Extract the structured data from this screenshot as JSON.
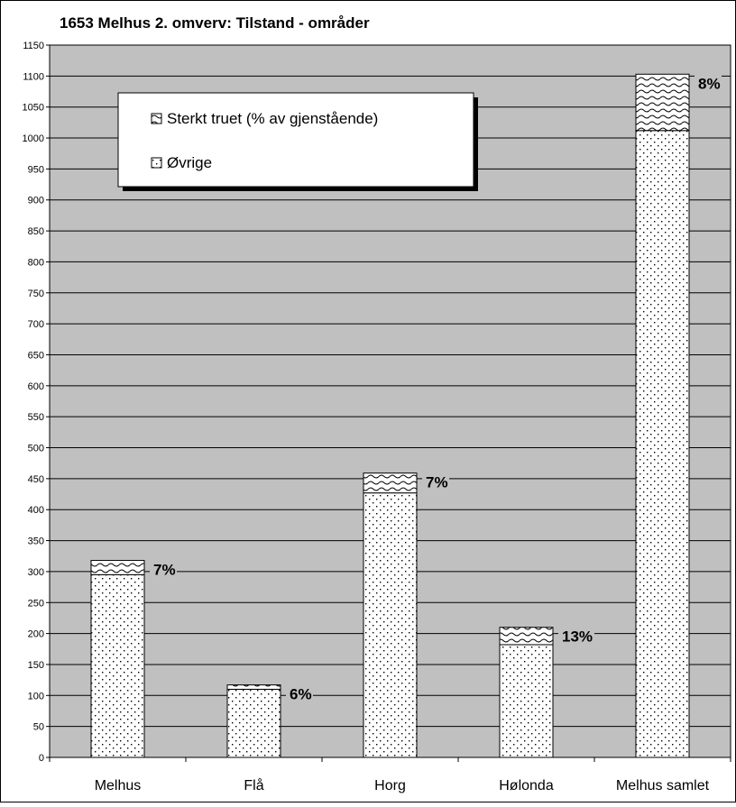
{
  "chart_data": {
    "type": "bar",
    "stacked": true,
    "title": "1653 Melhus 2. omverv: Tilstand - områder",
    "xlabel": "",
    "ylabel": "",
    "categories": [
      "Melhus",
      "Flå",
      "Horg",
      "Hølonda",
      "Melhus samlet"
    ],
    "series": [
      {
        "name": "Øvrige",
        "values": [
          295,
          110,
          427,
          182,
          1012
        ]
      },
      {
        "name": "Sterkt truet (% av gjenstående)",
        "values": [
          23,
          7,
          32,
          28,
          91
        ]
      }
    ],
    "data_labels": [
      "7%",
      "6%",
      "7%",
      "13%",
      "8%"
    ],
    "legend_order": [
      "Sterkt truet (% av gjenstående)",
      "Øvrige"
    ],
    "legend_position": "top-left",
    "ylim": [
      0,
      1150
    ],
    "ytick_step": 50,
    "grid": true,
    "colors": {
      "plot_bg": "#c0c0c0",
      "bar_bg": "#ffffff",
      "pattern": "#000000",
      "gridline": "#000000"
    }
  }
}
